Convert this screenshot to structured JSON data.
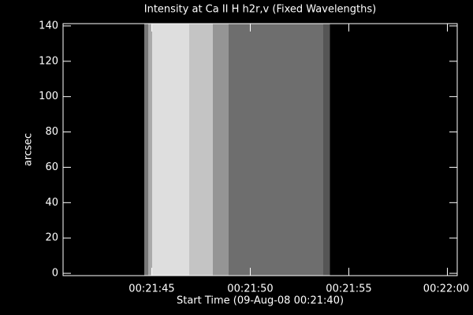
{
  "chart_data": {
    "type": "image",
    "title": "Intensity at Ca II H h2r,v (Fixed Wavelengths)",
    "xlabel": "Start Time (09-Aug-08 00:21:40)",
    "ylabel": "arcsec",
    "xlim": [
      0.5,
      20.5
    ],
    "xticks": [
      {
        "value": 5,
        "label": "00:21:45"
      },
      {
        "value": 10,
        "label": "00:21:50"
      },
      {
        "value": 15,
        "label": "00:21:55"
      },
      {
        "value": 20,
        "label": "00:22:00"
      }
    ],
    "ylim": [
      -1.3,
      141.3
    ],
    "yticks": [
      0,
      20,
      40,
      60,
      80,
      100,
      120,
      140
    ],
    "image": {
      "x": [
        4.62,
        4.82,
        5.02,
        6.9,
        8.1,
        8.9,
        13.7,
        14.02
      ],
      "colors": [
        "#777777",
        "#aaaaaa",
        "#dedede",
        "#c4c4c4",
        "#959595",
        "#6e6e6e",
        "#555555"
      ]
    },
    "background": "#000000",
    "axis_color": "#ffffff"
  }
}
